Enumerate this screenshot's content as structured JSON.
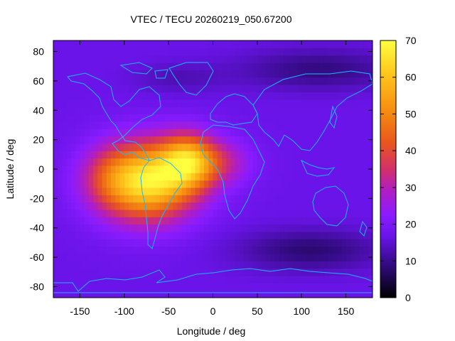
{
  "chart_data": {
    "type": "heatmap",
    "title": "VTEC / TECU 20260219_050.67200",
    "xlabel": "Longitude / deg",
    "ylabel": "Latitude / deg",
    "xlim": [
      -180,
      180
    ],
    "ylim": [
      -87.5,
      87.5
    ],
    "xticks": [
      -150,
      -100,
      -50,
      0,
      50,
      100,
      150
    ],
    "yticks": [
      -80,
      -60,
      -40,
      -20,
      0,
      20,
      40,
      60,
      80
    ],
    "colorbar": {
      "min": 0,
      "max": 70,
      "ticks": [
        0,
        10,
        20,
        30,
        40,
        50,
        60,
        70
      ],
      "palette": [
        "#000000",
        "#3a0a8c",
        "#7a1bff",
        "#a21fe0",
        "#c8208a",
        "#e0402a",
        "#f57a12",
        "#ffd21a",
        "#ffff66"
      ]
    },
    "background_level": 17,
    "features": [
      {
        "name": "main-peak",
        "lon": -75,
        "lat": -5,
        "value": 68
      },
      {
        "name": "atlantic-peak",
        "lon": -25,
        "lat": 5,
        "value": 62
      },
      {
        "name": "north-high-latitude-low",
        "lon": 120,
        "lat": 65,
        "value": 10
      },
      {
        "name": "south-high-latitude-low",
        "lon": 110,
        "lat": -55,
        "value": 9
      }
    ]
  }
}
